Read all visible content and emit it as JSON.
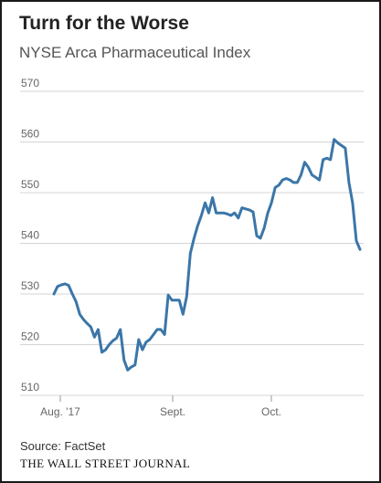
{
  "chart_data": {
    "type": "line",
    "title": "Turn for the Worse",
    "subtitle": "NYSE Arca Pharmaceutical Index",
    "xlabel": "",
    "ylabel": "",
    "ylim": [
      510,
      570
    ],
    "yticks": [
      510,
      520,
      530,
      540,
      550,
      560,
      570
    ],
    "xticks": [
      "Aug. '17",
      "Sept.",
      "Oct."
    ],
    "grid": true,
    "line_color": "#3b76a8",
    "series": [
      {
        "values": [
          530.0,
          531.5,
          531.8,
          532.0,
          531.7,
          530.0,
          528.5,
          526.0,
          525.0,
          524.2,
          523.5,
          521.5,
          523.0,
          518.5,
          519.0,
          520.0,
          520.8,
          521.3,
          523.0,
          517.0,
          515.0,
          515.6,
          516.0,
          521.0,
          519.0,
          520.5,
          521.0,
          522.0,
          523.0,
          523.0,
          522.0,
          529.8,
          528.8,
          528.8,
          528.8,
          526.0,
          529.5,
          538.0,
          541.0,
          543.5,
          545.5,
          548.0,
          546.0,
          549.0,
          546.0,
          546.0,
          546.0,
          545.8,
          545.5,
          546.0,
          545.0,
          547.0,
          546.8,
          546.6,
          546.2,
          541.5,
          541.0,
          543.0,
          546.0,
          548.0,
          551.0,
          551.5,
          552.5,
          552.8,
          552.5,
          552.0,
          552.0,
          553.5,
          556.0,
          555.0,
          553.5,
          553.0,
          552.5,
          556.5,
          556.8,
          556.5,
          560.5,
          559.8,
          559.3,
          558.8,
          552.0,
          548.0,
          540.5,
          538.8
        ]
      }
    ]
  },
  "footer": {
    "source": "Source: FactSet",
    "publisher": "THE WALL STREET JOURNAL"
  }
}
